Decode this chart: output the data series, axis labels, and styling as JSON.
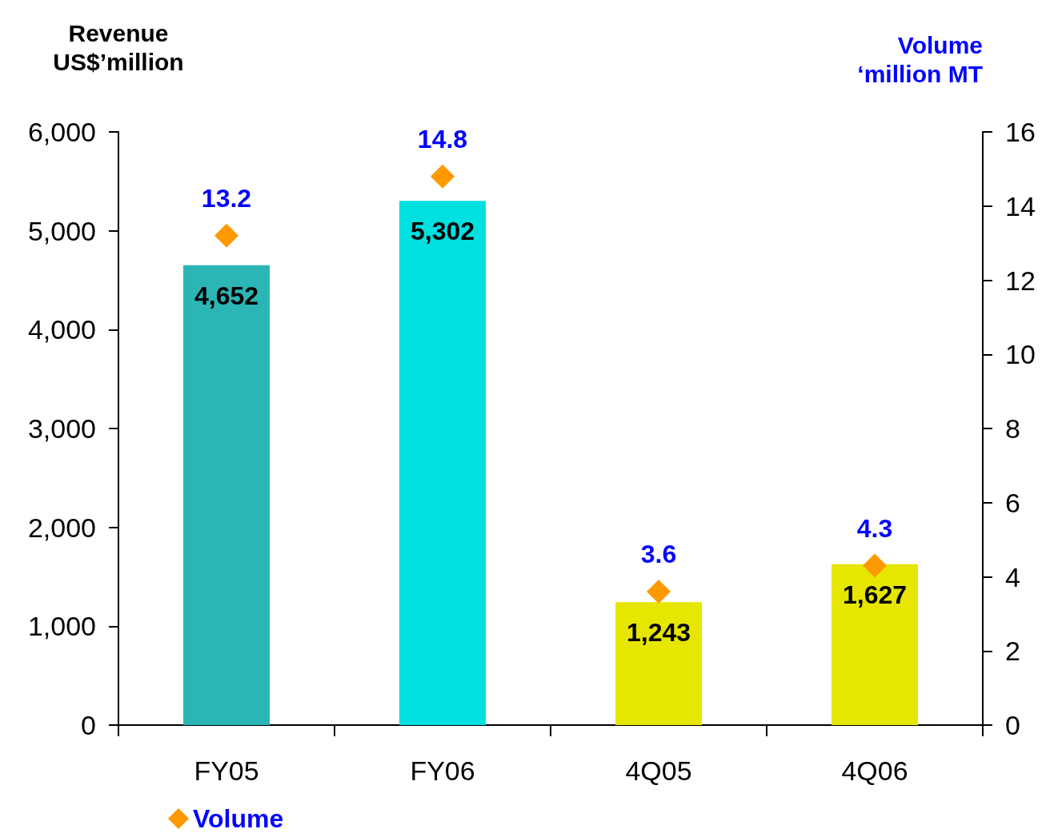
{
  "chart_data": {
    "type": "bar",
    "ylabel": "Revenue\nUS$’million",
    "y2label": "Volume\n‘million MT",
    "categories": [
      "FY05",
      "FY06",
      "4Q05",
      "4Q06"
    ],
    "series": [
      {
        "colors": [
          "#2bb5b5",
          "#00e0e0",
          "#e6e600",
          "#e6e600"
        ],
        "values": [
          4652,
          5302,
          1243,
          1627
        ],
        "value_labels": [
          "4,652",
          "5,302",
          "1,243",
          "1,627"
        ]
      },
      {
        "type": "scatter",
        "name": "Volume",
        "color": "#ff9900",
        "axis": "y2",
        "marker": "diamond",
        "values": [
          13.2,
          14.8,
          3.6,
          4.3
        ],
        "value_labels": [
          "13.2",
          "14.8",
          "3.6",
          "4.3"
        ]
      }
    ],
    "ylim": [
      0,
      6000
    ],
    "yticks": [
      {
        "value": 0,
        "label": "0"
      },
      {
        "value": 1000,
        "label": "1,000"
      },
      {
        "value": 2000,
        "label": "2,000"
      },
      {
        "value": 3000,
        "label": "3,000"
      },
      {
        "value": 4000,
        "label": "4,000"
      },
      {
        "value": 5000,
        "label": "5,000"
      },
      {
        "value": 6000,
        "label": "6,000"
      }
    ],
    "y2lim": [
      0,
      16
    ],
    "y2ticks": [
      0,
      2,
      4,
      6,
      8,
      10,
      12,
      14,
      16
    ],
    "grid": false,
    "legend": "bottom left"
  }
}
